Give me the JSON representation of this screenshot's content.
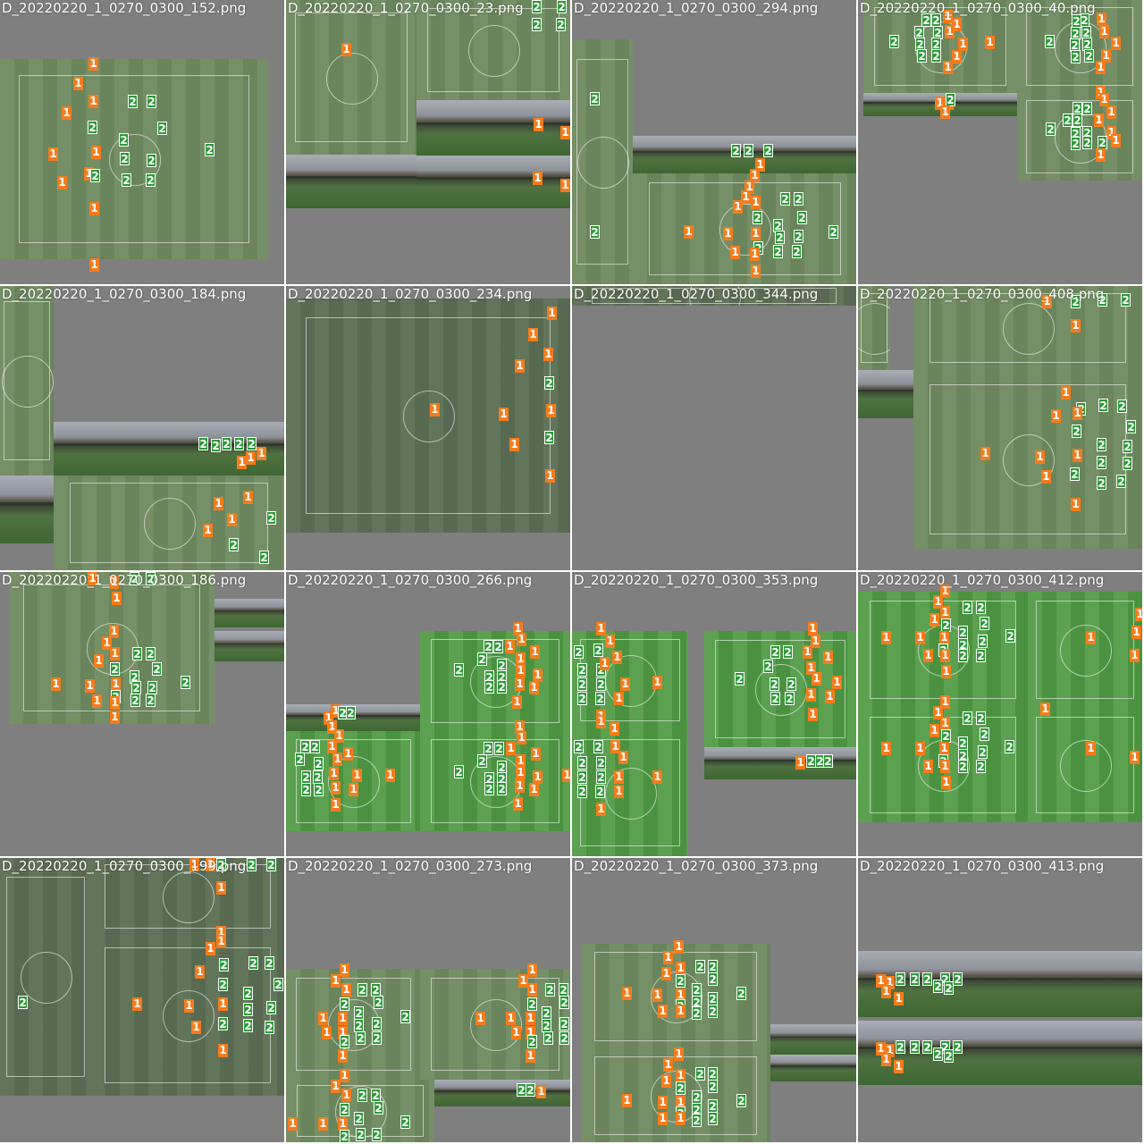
{
  "tiles": [
    {
      "title": "D_20220220_1_0270_0300_152.png"
    },
    {
      "title": "D_20220220_1_0270_0300_23.png"
    },
    {
      "title": "D_20220220_1_0270_0300_294.png"
    },
    {
      "title": "D_20220220_1_0270_0300_40.png"
    },
    {
      "title": "D_20220220_1_0270_0300_184.png"
    },
    {
      "title": "D_20220220_1_0270_0300_234.png"
    },
    {
      "title": "D_20220220_1_0270_0300_344.png"
    },
    {
      "title": "D_20220220_1_0270_0300_408.png"
    },
    {
      "title": "D_20220220_1_0270_0300_186.png"
    },
    {
      "title": "D_20220220_1_0270_0300_266.png"
    },
    {
      "title": "D_20220220_1_0270_0300_353.png"
    },
    {
      "title": "D_20220220_1_0270_0300_412.png"
    },
    {
      "title": "D_20220220_1_0270_0300_199.png"
    },
    {
      "title": "D_20220220_1_0270_0300_273.png"
    },
    {
      "title": "D_20220220_1_0270_0300_373.png"
    },
    {
      "title": "D_20220220_1_0270_0300_413.png"
    }
  ],
  "classes": {
    "team_a": "1",
    "team_b": "2"
  },
  "colors": {
    "team_a": "#f57c1c",
    "team_b": "#2e9a39",
    "background": "#7f7f7f"
  }
}
